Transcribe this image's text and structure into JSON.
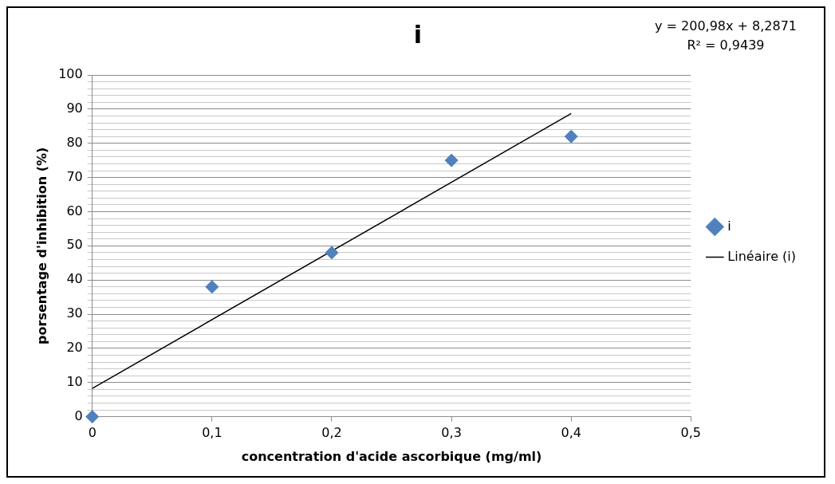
{
  "chart_data": {
    "type": "scatter",
    "title": "i",
    "xlabel": "concentration d'acide ascorbique (mg/ml)",
    "ylabel": "porsentage d'inhibition (%)",
    "x": [
      0,
      0.1,
      0.2,
      0.3,
      0.4
    ],
    "series": [
      {
        "name": "i",
        "color": "#4f81bd",
        "values": [
          0,
          38,
          48,
          75,
          82
        ],
        "marker": "diamond"
      },
      {
        "name": "Linéaire (i)",
        "type": "line",
        "color": "#000000",
        "x": [
          0,
          0.4
        ],
        "values": [
          8.3,
          88.7
        ],
        "marker": "none"
      }
    ],
    "xlim": [
      0,
      0.5
    ],
    "xticks": [
      0,
      {
        "value": 0.1,
        "label": "0,1"
      },
      {
        "value": 0.2,
        "label": "0,2"
      },
      {
        "value": 0.3,
        "label": "0,3"
      },
      {
        "value": 0.4,
        "label": "0,4"
      },
      {
        "value": 0.5,
        "label": "0,5"
      }
    ],
    "ylim": [
      0,
      100
    ],
    "yticks": [
      0,
      {
        "value": 2,
        "label": null
      },
      {
        "value": 4,
        "label": null
      },
      {
        "value": 6,
        "label": null
      },
      {
        "value": 8,
        "label": null
      },
      10,
      {
        "value": 12,
        "label": null
      },
      {
        "value": 14,
        "label": null
      },
      {
        "value": 16,
        "label": null
      },
      {
        "value": 18,
        "label": null
      },
      20,
      {
        "value": 22,
        "label": null
      },
      {
        "value": 24,
        "label": null
      },
      {
        "value": 26,
        "label": null
      },
      {
        "value": 28,
        "label": null
      },
      30,
      {
        "value": 32,
        "label": null
      },
      {
        "value": 34,
        "label": null
      },
      {
        "value": 36,
        "label": null
      },
      {
        "value": 38,
        "label": null
      },
      40,
      {
        "value": 42,
        "label": null
      },
      {
        "value": 44,
        "label": null
      },
      {
        "value": 46,
        "label": null
      },
      {
        "value": 48,
        "label": null
      },
      50,
      {
        "value": 52,
        "label": null
      },
      {
        "value": 54,
        "label": null
      },
      {
        "value": 56,
        "label": null
      },
      {
        "value": 58,
        "label": null
      },
      60,
      {
        "value": 62,
        "label": null
      },
      {
        "value": 64,
        "label": null
      },
      {
        "value": 66,
        "label": null
      },
      {
        "value": 68,
        "label": null
      },
      70,
      {
        "value": 72,
        "label": null
      },
      {
        "value": 74,
        "label": null
      },
      {
        "value": 76,
        "label": null
      },
      {
        "value": 78,
        "label": null
      },
      80,
      {
        "value": 82,
        "label": null
      },
      {
        "value": 84,
        "label": null
      },
      {
        "value": 86,
        "label": null
      },
      {
        "value": 88,
        "label": null
      },
      90,
      {
        "value": 92,
        "label": null
      },
      {
        "value": 94,
        "label": null
      },
      {
        "value": 96,
        "label": null
      },
      {
        "value": 98,
        "label": null
      },
      100
    ],
    "grid": "y",
    "legend": "right",
    "annotations": [
      "y = 200,98x + 8,2871",
      "R² = 0,9439"
    ]
  }
}
